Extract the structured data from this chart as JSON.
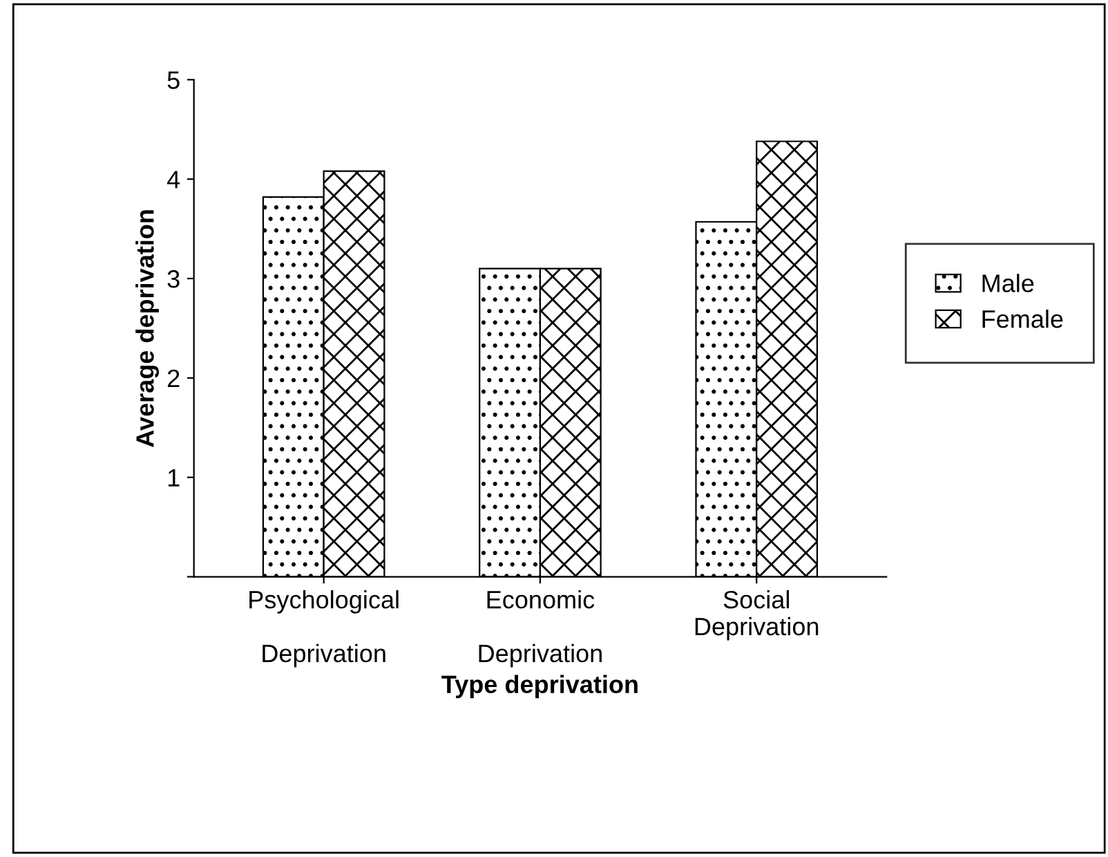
{
  "chart_data": {
    "type": "bar",
    "xlabel": "Type deprivation",
    "ylabel": "Average deprivation",
    "categories": [
      "Psychological\n\nDeprivation",
      "Economic\n\nDeprivation",
      "Social\nDeprivation"
    ],
    "series": [
      {
        "name": "Male",
        "color": "#000000",
        "values": [
          3.82,
          3.1,
          3.57
        ]
      },
      {
        "name": "Female",
        "color": "#000000",
        "values": [
          4.08,
          3.1,
          4.38
        ]
      }
    ],
    "ylim": [
      0,
      5
    ],
    "yticks": [
      {
        "value": 0,
        "label": null
      },
      1,
      2,
      3,
      4,
      5
    ],
    "grid": false,
    "legend": "right"
  }
}
